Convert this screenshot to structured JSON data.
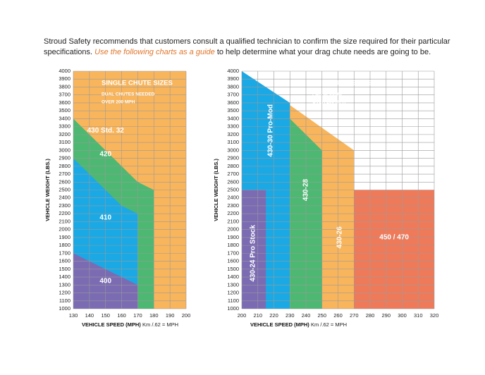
{
  "intro": {
    "line1": "Stroud Safety recommends that customers consult a qualified technician to confirm the size required for their particular",
    "before": "specifications.",
    "emphasis": "Use the following charts as a guide",
    "after": "to help determine what your drag chute needs are going to be."
  },
  "chart_data": [
    {
      "type": "area",
      "title": "SINGLE CHUTE SIZES",
      "note": [
        "DUAL CHUTES NEEDED",
        "OVER 200 MPH"
      ],
      "xlabel": "VEHICLE SPEED (MPH)",
      "xnote": "Km /.62 = MPH",
      "ylabel": "VEHICLE WEIGHT (LBS.)",
      "xlim": [
        130,
        200
      ],
      "ylim": [
        1000,
        4000
      ],
      "grid": true,
      "xticks": [
        130,
        140,
        150,
        160,
        170,
        180,
        190,
        200
      ],
      "yticks": [
        1000,
        1100,
        1200,
        1300,
        1400,
        1500,
        1600,
        1700,
        1800,
        1900,
        2000,
        2100,
        2200,
        2300,
        2400,
        2500,
        2600,
        2700,
        2800,
        2900,
        3000,
        3100,
        3200,
        3300,
        3400,
        3500,
        3600,
        3700,
        3800,
        3900,
        4000
      ],
      "series": [
        {
          "name": "430 Std. 32",
          "color": "#f9b55c",
          "x": [
            130,
            200
          ],
          "values": [
            4000,
            4000
          ]
        },
        {
          "name": "420",
          "color": "#4db872",
          "x": [
            130,
            170,
            180
          ],
          "values": [
            3400,
            2600,
            2500
          ]
        },
        {
          "name": "410",
          "color": "#1aa9e5",
          "x": [
            130,
            160,
            170
          ],
          "values": [
            2900,
            2300,
            2200
          ]
        },
        {
          "name": "400",
          "color": "#7b6bb3",
          "x": [
            130,
            170
          ],
          "values": [
            1700,
            1300
          ]
        }
      ]
    },
    {
      "type": "area",
      "title": "DUAL CHUTE SIZES",
      "note": [
        "FOR SPEEDS",
        "OVER 200 MPH"
      ],
      "xlabel": "VEHICLE SPEED (MPH)",
      "xnote": "Km /.62 = MPH",
      "ylabel": "VEHICLE WEIGHT (LBS.)",
      "xlim": [
        200,
        320
      ],
      "ylim": [
        1000,
        4000
      ],
      "grid": true,
      "xticks": [
        200,
        210,
        220,
        230,
        240,
        250,
        260,
        270,
        280,
        290,
        300,
        310,
        320
      ],
      "yticks": [
        1000,
        1100,
        1200,
        1300,
        1400,
        1500,
        1600,
        1700,
        1800,
        1900,
        2000,
        2100,
        2200,
        2300,
        2400,
        2500,
        2600,
        2700,
        2800,
        2900,
        3000,
        3100,
        3200,
        3300,
        3400,
        3500,
        3600,
        3700,
        3800,
        3900,
        4000
      ],
      "series": [
        {
          "name": "430-26",
          "color": "#f9b55c",
          "x": [
            200,
            270
          ],
          "values": [
            4000,
            3000
          ]
        },
        {
          "name": "450 / 470",
          "color": "#ef7a5a",
          "x": [
            270,
            320
          ],
          "values": [
            2500,
            2500
          ]
        },
        {
          "name": "430-28",
          "color": "#4db872",
          "x": [
            200,
            250
          ],
          "values": [
            4000,
            3000
          ]
        },
        {
          "name": "430-30 Pro-Mod",
          "color": "#1aa9e5",
          "x": [
            200,
            230
          ],
          "values": [
            4000,
            3600
          ]
        },
        {
          "name": "430-24 Pro Stock",
          "color": "#7b6bb3",
          "x": [
            200,
            215
          ],
          "values": [
            2500,
            2500
          ]
        }
      ]
    }
  ]
}
